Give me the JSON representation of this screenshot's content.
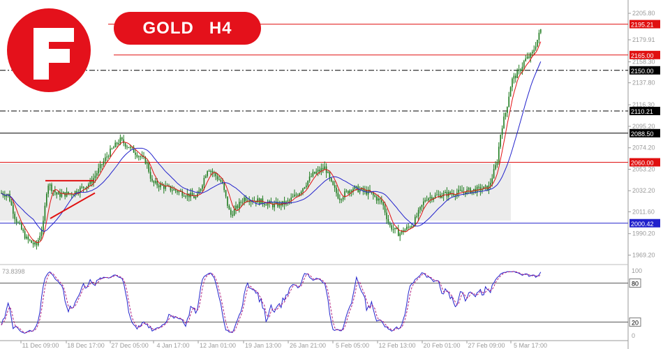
{
  "header": {
    "symbol": "GOLD",
    "timeframe": "H4"
  },
  "colors": {
    "brand_red": "#e4111b",
    "candle_up": "#1e7b1e",
    "candle_down": "#1e7b1e",
    "fast_ma": "#e01010",
    "slow_ma": "#2222cc",
    "range_box": "#ececec",
    "stoch_main": "#2222cc",
    "stoch_signal": "#b02080"
  },
  "price_axis": {
    "ticks": [
      "2205.80",
      "2179.91",
      "2158.30",
      "2137.80",
      "2116.30",
      "2095.20",
      "2074.20",
      "2053.20",
      "2032.20",
      "2011.60",
      "1990.20",
      "1969.20"
    ],
    "ylim": [
      1962,
      2212
    ]
  },
  "levels": [
    {
      "label": "2195.21",
      "price": 2195.21,
      "color": "#e01010",
      "style": "solid",
      "tag_bg": "#e01010",
      "tag_fg": "#ffffff"
    },
    {
      "label": "2165.00",
      "price": 2165.0,
      "color": "#e01010",
      "style": "solid",
      "tag_bg": "#e01010",
      "tag_fg": "#ffffff"
    },
    {
      "label": "2150.00",
      "price": 2150.0,
      "color": "#000000",
      "style": "dashdot",
      "tag_bg": "#000000",
      "tag_fg": "#ffffff"
    },
    {
      "label": "2110.21",
      "price": 2110.21,
      "color": "#000000",
      "style": "dashdot",
      "tag_bg": "#000000",
      "tag_fg": "#ffffff"
    },
    {
      "label": "2088.50",
      "price": 2088.5,
      "color": "#000000",
      "style": "solid",
      "tag_bg": "#000000",
      "tag_fg": "#ffffff"
    },
    {
      "label": "2060.00",
      "price": 2060.0,
      "color": "#e01010",
      "style": "solid",
      "tag_bg": "#e01010",
      "tag_fg": "#ffffff"
    },
    {
      "label": "2000.42",
      "price": 2000.42,
      "color": "#2222cc",
      "style": "solid",
      "tag_bg": "#2222cc",
      "tag_fg": "#ffffff"
    }
  ],
  "oscillator": {
    "readout": "73.8398",
    "ticks": [
      "100",
      "80",
      "20",
      "0"
    ],
    "levels": [
      80,
      20
    ]
  },
  "time_axis": [
    "11 Dec 09:00",
    "18 Dec 17:00",
    "27 Dec 05:00",
    "4 Jan 17:00",
    "12 Jan 01:00",
    "19 Jan 13:00",
    "26 Jan 21:00",
    "5 Feb 05:00",
    "12 Feb 13:00",
    "20 Feb 01:00",
    "27 Feb 09:00",
    "5 Mar 17:00"
  ],
  "chart_data": {
    "type": "candlestick",
    "title": "GOLD H4",
    "price_close_path": [
      {
        "x": "start",
        "y": 2030
      },
      {
        "x": "11 Dec 09:00",
        "y": 1990
      },
      {
        "x": "mid Dec",
        "y": 2040
      },
      {
        "x": "18 Dec 17:00",
        "y": 2030
      },
      {
        "x": "27 Dec 05:00",
        "y": 2080
      },
      {
        "x": "4 Jan 17:00",
        "y": 2035
      },
      {
        "x": "12 Jan 01:00",
        "y": 2055
      },
      {
        "x": "19 Jan 13:00",
        "y": 2025
      },
      {
        "x": "26 Jan 21:00",
        "y": 2045
      },
      {
        "x": "5 Feb 05:00",
        "y": 2030
      },
      {
        "x": "12 Feb 13:00",
        "y": 1992
      },
      {
        "x": "20 Feb 01:00",
        "y": 2030
      },
      {
        "x": "27 Feb 09:00",
        "y": 2045
      },
      {
        "x": "5 Mar 17:00",
        "y": 2195
      }
    ],
    "notes_levels": [
      2195.21,
      2165.0,
      2150.0,
      2110.21,
      2088.5,
      2060.0,
      2000.42
    ]
  }
}
